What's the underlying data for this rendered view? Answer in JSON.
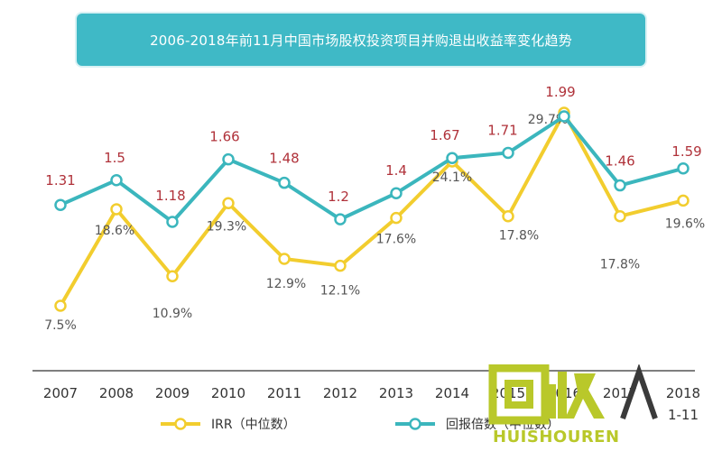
{
  "title": "2006-2018年前11月中国市场股权投资项目并购退出收益率变化趋势",
  "chart_data": {
    "type": "line",
    "categories": [
      "2007",
      "2008",
      "2009",
      "2010",
      "2011",
      "2012",
      "2013",
      "2014",
      "2015",
      "2016",
      "2017",
      "2018\n1-11"
    ],
    "series": [
      {
        "name": "IRR（中位数）",
        "color": "#f2cd2e",
        "values": [
          7.5,
          18.6,
          10.9,
          19.3,
          12.9,
          12.1,
          17.6,
          24.1,
          17.8,
          29.7,
          17.8,
          19.6
        ],
        "labels": [
          "7.5%",
          "18.6%",
          "10.9%",
          "19.3%",
          "12.9%",
          "12.1%",
          "17.6%",
          "24.1%",
          "17.8%",
          "29.7%",
          "17.8%",
          "19.6%"
        ]
      },
      {
        "name": "回报倍数（中位数）",
        "color": "#3bb6bd",
        "values": [
          1.31,
          1.5,
          1.18,
          1.66,
          1.48,
          1.2,
          1.4,
          1.67,
          1.71,
          1.99,
          1.46,
          1.59
        ],
        "labels": [
          "1.31",
          "1.5",
          "1.18",
          "1.66",
          "1.48",
          "1.2",
          "1.4",
          "1.67",
          "1.71",
          "1.99",
          "1.46",
          "1.59"
        ]
      }
    ],
    "legend_position": "bottom",
    "grid": false
  },
  "watermark": {
    "glyphs": "回收",
    "text": "HUISHOUREN"
  }
}
